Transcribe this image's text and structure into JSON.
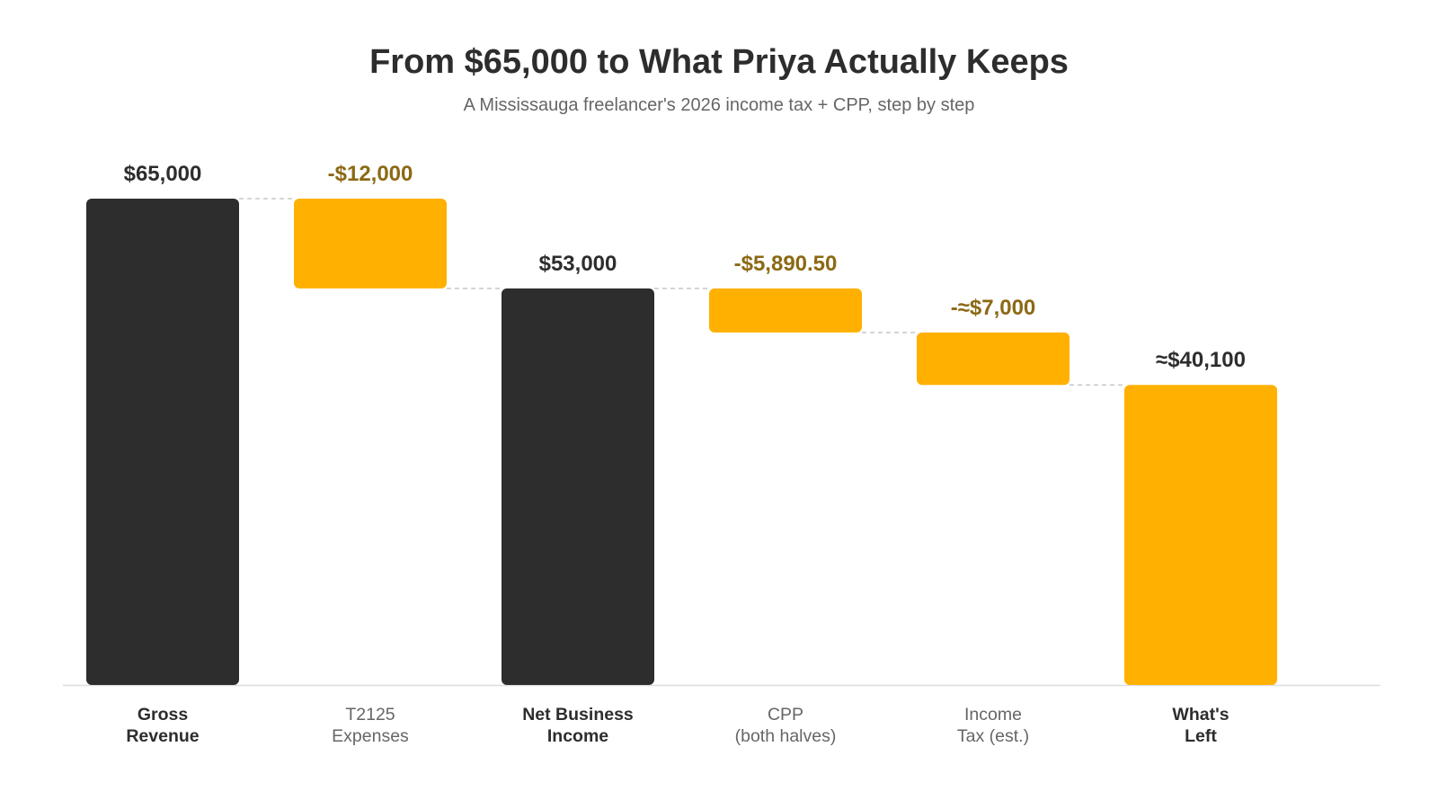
{
  "chart_data": {
    "type": "waterfall",
    "title": "From $65,000 to What Priya Actually Keeps",
    "subtitle": "A Mississauga freelancer's 2026 income tax + CPP, step by step",
    "steps": [
      {
        "label": [
          "Gross",
          "Revenue"
        ],
        "kind": "total",
        "start": 0,
        "end": 65000,
        "value_label": "$65,000"
      },
      {
        "label": [
          "T2125",
          "Expenses"
        ],
        "kind": "decrease",
        "start": 65000,
        "end": 53000,
        "value_label": "-$12,000"
      },
      {
        "label": [
          "Net Business",
          "Income"
        ],
        "kind": "total",
        "start": 0,
        "end": 53000,
        "value_label": "$53,000"
      },
      {
        "label": [
          "CPP",
          "(both halves)"
        ],
        "kind": "decrease",
        "start": 53000,
        "end": 47109.5,
        "value_label": "-$5,890.50"
      },
      {
        "label": [
          "Income",
          "Tax (est.)"
        ],
        "kind": "decrease",
        "start": 47109.5,
        "end": 40100,
        "value_label": "-≈$7,000"
      },
      {
        "label": [
          "What's",
          "Left"
        ],
        "kind": "result",
        "start": 0,
        "end": 40100,
        "value_label": "≈$40,100"
      }
    ],
    "ylim": [
      0,
      65000
    ],
    "grid": false,
    "connectors": "dashed"
  },
  "colors": {
    "total": "#2d2d2d",
    "decrease": "#ffb000",
    "result": "#ffb000",
    "decrease_label": "#8b6914",
    "total_label": "#2d2d2d",
    "connector": "#c8c8c8",
    "baseline": "#dddddd"
  }
}
